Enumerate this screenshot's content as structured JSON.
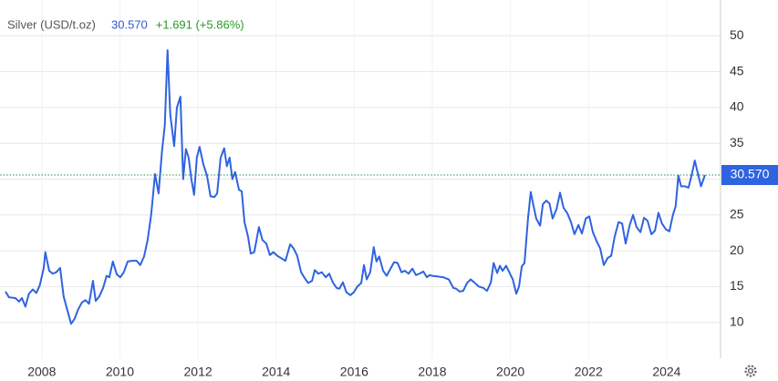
{
  "chart_data": {
    "type": "line",
    "title": "Silver (USD/t.oz)",
    "current": {
      "value": 30.57,
      "label": "30.570"
    },
    "change": "+1.691 (+5.86%)",
    "xlim": [
      2006.93,
      2025.38
    ],
    "ylim": [
      5,
      55
    ],
    "xticks": [
      2008,
      2010,
      2012,
      2014,
      2016,
      2018,
      2020,
      2022,
      2024
    ],
    "yticks": [
      10,
      15,
      20,
      25,
      30,
      35,
      40,
      45,
      50
    ],
    "grid": true,
    "series": [
      {
        "name": "Silver",
        "color": "#2f63e0",
        "x": [
          2007.07,
          2007.16,
          2007.32,
          2007.42,
          2007.49,
          2007.58,
          2007.67,
          2007.77,
          2007.86,
          2007.95,
          2008.05,
          2008.09,
          2008.19,
          2008.28,
          2008.37,
          2008.47,
          2008.56,
          2008.65,
          2008.75,
          2008.84,
          2008.93,
          2009.03,
          2009.12,
          2009.21,
          2009.31,
          2009.38,
          2009.47,
          2009.57,
          2009.66,
          2009.73,
          2009.82,
          2009.92,
          2010.01,
          2010.1,
          2010.2,
          2010.31,
          2010.43,
          2010.52,
          2010.62,
          2010.71,
          2010.8,
          2010.9,
          2010.99,
          2011.08,
          2011.15,
          2011.22,
          2011.29,
          2011.39,
          2011.46,
          2011.55,
          2011.62,
          2011.69,
          2011.76,
          2011.83,
          2011.9,
          2011.97,
          2012.04,
          2012.14,
          2012.23,
          2012.32,
          2012.42,
          2012.49,
          2012.58,
          2012.67,
          2012.74,
          2012.81,
          2012.88,
          2012.95,
          2013.05,
          2013.12,
          2013.19,
          2013.28,
          2013.35,
          2013.44,
          2013.56,
          2013.65,
          2013.75,
          2013.84,
          2013.93,
          2014.03,
          2014.12,
          2014.24,
          2014.36,
          2014.45,
          2014.54,
          2014.64,
          2014.73,
          2014.82,
          2014.92,
          2014.99,
          2015.08,
          2015.17,
          2015.27,
          2015.36,
          2015.45,
          2015.55,
          2015.62,
          2015.71,
          2015.8,
          2015.9,
          2015.99,
          2016.08,
          2016.18,
          2016.25,
          2016.32,
          2016.41,
          2016.5,
          2016.57,
          2016.64,
          2016.74,
          2016.83,
          2016.93,
          2017.02,
          2017.11,
          2017.21,
          2017.3,
          2017.39,
          2017.49,
          2017.58,
          2017.67,
          2017.77,
          2017.86,
          2017.93,
          2018.0,
          2018.14,
          2018.28,
          2018.42,
          2018.54,
          2018.61,
          2018.7,
          2018.79,
          2018.89,
          2018.98,
          2019.07,
          2019.19,
          2019.31,
          2019.4,
          2019.5,
          2019.57,
          2019.66,
          2019.73,
          2019.8,
          2019.89,
          2020.06,
          2020.15,
          2020.22,
          2020.29,
          2020.36,
          2020.45,
          2020.52,
          2020.59,
          2020.66,
          2020.76,
          2020.83,
          2020.92,
          2021.0,
          2021.08,
          2021.18,
          2021.27,
          2021.36,
          2021.46,
          2021.55,
          2021.64,
          2021.74,
          2021.83,
          2021.93,
          2022.02,
          2022.11,
          2022.21,
          2022.3,
          2022.39,
          2022.49,
          2022.58,
          2022.67,
          2022.77,
          2022.86,
          2022.95,
          2023.05,
          2023.14,
          2023.23,
          2023.33,
          2023.42,
          2023.51,
          2023.61,
          2023.7,
          2023.79,
          2023.88,
          2023.98,
          2024.07,
          2024.16,
          2024.23,
          2024.3,
          2024.37,
          2024.46,
          2024.56,
          2024.65,
          2024.72,
          2024.79,
          2024.88,
          2024.98
        ],
        "values": [
          14.3,
          13.5,
          13.4,
          12.9,
          13.4,
          12.2,
          14.0,
          14.6,
          14.1,
          15.2,
          17.6,
          19.8,
          17.2,
          16.8,
          17.0,
          17.6,
          13.6,
          11.8,
          9.8,
          10.5,
          11.8,
          12.8,
          13.1,
          12.6,
          15.8,
          13.0,
          13.6,
          14.8,
          16.5,
          16.3,
          18.5,
          16.7,
          16.3,
          17.0,
          18.5,
          18.6,
          18.6,
          18.0,
          19.2,
          21.5,
          25.0,
          30.7,
          28.0,
          34.0,
          37.5,
          48.0,
          39.0,
          34.6,
          40.0,
          41.5,
          30.0,
          34.2,
          33.0,
          30.0,
          27.8,
          33.0,
          34.5,
          32.0,
          30.5,
          27.6,
          27.5,
          28.0,
          33.0,
          34.3,
          31.8,
          33.0,
          30.0,
          31.0,
          28.5,
          28.3,
          24.0,
          22.0,
          19.6,
          19.8,
          23.3,
          21.5,
          21.0,
          19.4,
          19.8,
          19.3,
          19.0,
          18.6,
          20.9,
          20.3,
          19.3,
          17.0,
          16.2,
          15.5,
          15.8,
          17.3,
          16.8,
          17.0,
          16.3,
          16.8,
          15.6,
          14.8,
          14.7,
          15.6,
          14.2,
          13.8,
          14.2,
          15.0,
          15.5,
          18.0,
          16.0,
          17.0,
          20.5,
          18.5,
          19.2,
          17.2,
          16.5,
          17.5,
          18.4,
          18.3,
          17.0,
          17.2,
          16.8,
          17.5,
          16.6,
          16.8,
          17.1,
          16.3,
          16.6,
          16.5,
          16.4,
          16.3,
          16.0,
          14.8,
          14.7,
          14.3,
          14.4,
          15.5,
          16.0,
          15.6,
          15.0,
          14.8,
          14.4,
          15.6,
          18.3,
          16.9,
          17.9,
          17.2,
          17.9,
          16.0,
          14.0,
          15.0,
          17.8,
          18.3,
          24.5,
          28.2,
          26.3,
          24.5,
          23.5,
          26.5,
          27.0,
          26.6,
          24.5,
          25.8,
          28.1,
          26.0,
          25.2,
          24.0,
          22.3,
          23.6,
          22.4,
          24.5,
          24.8,
          22.6,
          21.3,
          20.3,
          18.0,
          19.0,
          19.3,
          22.0,
          24.0,
          23.8,
          21.0,
          23.5,
          25.0,
          23.3,
          22.6,
          24.6,
          24.2,
          22.3,
          22.8,
          25.3,
          23.8,
          23.0,
          22.7,
          25.0,
          26.2,
          30.5,
          29.0,
          29.0,
          28.8,
          30.8,
          32.6,
          31.0,
          29.0,
          30.57
        ]
      }
    ]
  }
}
